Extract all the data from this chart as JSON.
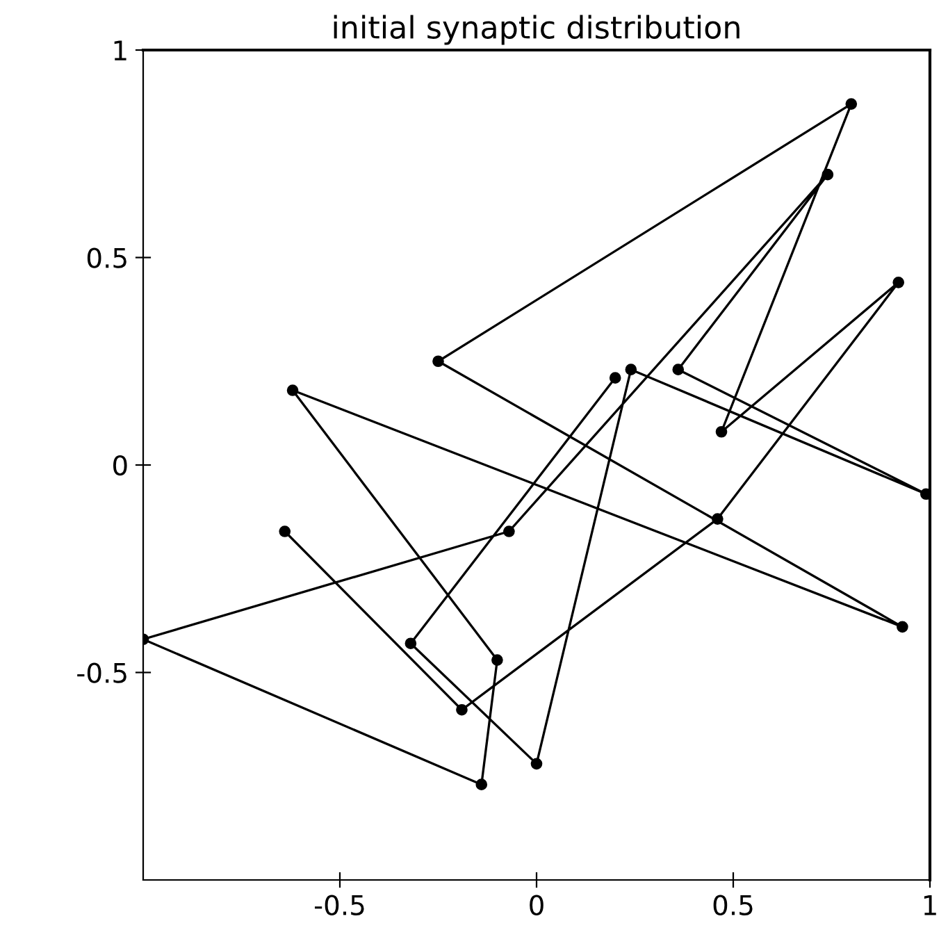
{
  "chart_data": {
    "type": "line",
    "title": "initial synaptic distribution",
    "series": [
      {
        "color": "#000000",
        "x": [
          -0.64,
          -0.19,
          0.46,
          0.92,
          0.47,
          0.8,
          -0.25,
          0.93,
          -0.62,
          -0.1,
          -0.14,
          -1.0,
          -0.07,
          0.74,
          0.36,
          0.99,
          0.24,
          0.0,
          -0.32,
          0.2
        ],
        "values": [
          -0.16,
          -0.59,
          -0.13,
          0.44,
          0.08,
          0.87,
          0.25,
          -0.39,
          0.18,
          -0.47,
          -0.77,
          -0.42,
          -0.16,
          0.7,
          0.23,
          -0.07,
          0.23,
          -0.72,
          -0.43,
          0.21
        ]
      }
    ],
    "marker": "circle",
    "line_style": "solid",
    "grid": false,
    "legend": false,
    "xlim": [
      -1,
      1
    ],
    "ylim": [
      -1,
      1
    ],
    "xticks": [
      -0.5,
      0,
      0.5,
      1
    ],
    "yticks": [
      -0.5,
      0,
      0.5,
      1
    ]
  }
}
